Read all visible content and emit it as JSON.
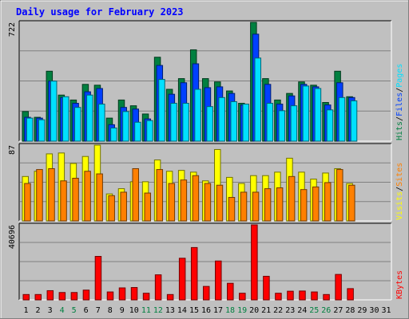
{
  "chart_data": {
    "type": "bar",
    "title": "Daily usage for February 2023",
    "categories": [
      "1",
      "2",
      "3",
      "4",
      "5",
      "6",
      "7",
      "8",
      "9",
      "10",
      "11",
      "12",
      "13",
      "14",
      "15",
      "16",
      "17",
      "18",
      "19",
      "20",
      "21",
      "22",
      "23",
      "24",
      "25",
      "26",
      "27",
      "28",
      "29",
      "30",
      "31"
    ],
    "weekend_days": [
      "4",
      "5",
      "11",
      "12",
      "18",
      "19",
      "25",
      "26"
    ],
    "panels": [
      {
        "name": "hits-files-pages",
        "max_label": "722",
        "ylim": [
          0,
          722
        ],
        "legend": [
          {
            "label": "Hits",
            "color": "#008040"
          },
          {
            "label": "Files",
            "color": "#0040ff"
          },
          {
            "label": "Pages",
            "color": "#00e0ff"
          }
        ],
        "series": [
          {
            "name": "Hits",
            "color": "#008040",
            "values": [
              180,
              145,
              425,
              280,
              250,
              345,
              340,
              140,
              250,
              215,
              165,
              510,
              315,
              380,
              555,
              380,
              360,
              305,
              230,
              722,
              380,
              250,
              290,
              360,
              340,
              235,
              425,
              270,
              null,
              null,
              null
            ]
          },
          {
            "name": "Files",
            "color": "#0040ff",
            "values": [
              145,
              140,
              365,
              265,
              230,
              300,
              320,
              100,
              205,
              195,
              135,
              460,
              285,
              355,
              470,
              325,
              330,
              290,
              220,
              650,
              345,
              225,
              275,
              345,
              330,
              220,
              355,
              265,
              null,
              null,
              null
            ]
          },
          {
            "name": "Pages",
            "color": "#00e0ff",
            "values": [
              140,
              130,
              365,
              270,
              205,
              280,
              225,
              80,
              180,
              115,
              125,
              375,
              230,
              230,
              315,
              210,
              265,
              240,
              225,
              505,
              230,
              185,
              215,
              335,
              320,
              190,
              265,
              245,
              null,
              null,
              null
            ]
          }
        ]
      },
      {
        "name": "visits-sites",
        "max_label": "87",
        "ylim": [
          0,
          87
        ],
        "legend": [
          {
            "label": "Visits",
            "color": "#ffff00"
          },
          {
            "label": "Sites",
            "color": "#ff8000"
          }
        ],
        "series": [
          {
            "name": "Visits",
            "color": "#ffff00",
            "values": [
              51,
              57,
              77,
              78,
              66,
              74,
              87,
              31,
              37,
              45,
              45,
              70,
              57,
              58,
              56,
              46,
              82,
              50,
              43,
              52,
              52,
              56,
              72,
              56,
              48,
              55,
              60,
              43,
              null,
              null,
              null
            ]
          },
          {
            "name": "Sites",
            "color": "#ff8000",
            "values": [
              43,
              59,
              60,
              46,
              49,
              57,
              54,
              29,
              33,
              60,
              32,
              59,
              43,
              47,
              52,
              43,
              41,
              27,
              33,
              33,
              37,
              38,
              51,
              36,
              39,
              44,
              59,
              41,
              null,
              null,
              null
            ]
          }
        ]
      },
      {
        "name": "kbytes",
        "max_label": "40696",
        "ylim": [
          0,
          40696
        ],
        "legend": [
          {
            "label": "KBytes",
            "color": "#ff0000"
          }
        ],
        "series": [
          {
            "name": "KBytes",
            "color": "#ff0000",
            "values": [
              2900,
              2900,
              5000,
              4000,
              4000,
              5300,
              23600,
              4300,
              6500,
              6700,
              3600,
              13600,
              2900,
              22600,
              28400,
              7300,
              21100,
              9000,
              3600,
              40696,
              12800,
              3600,
              4700,
              4800,
              4300,
              2900,
              13800,
              6100,
              null,
              null,
              null
            ]
          }
        ]
      }
    ]
  }
}
